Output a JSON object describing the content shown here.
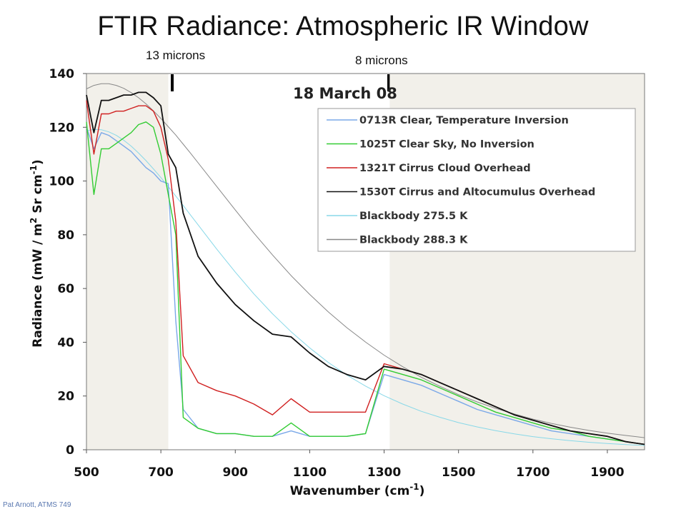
{
  "slide": {
    "title": "FTIR Radiance: Atmospheric IR Window",
    "footer": "Pat Arnott, ATMS 749",
    "markers": [
      {
        "label": "13 microns",
        "x": 720
      },
      {
        "label": "8 microns",
        "x": 1315
      }
    ]
  },
  "chart_data": {
    "type": "line",
    "title": "18 March 08",
    "xlabel": "Wavenumber (cm",
    "xlabel_sup": "-1",
    "xlabel_end": ")",
    "ylabel": "Radiance (mW / m",
    "ylabel_sup1": "2",
    "ylabel_mid": " Sr cm",
    "ylabel_sup2": "-1",
    "ylabel_end": ")",
    "xlim": [
      500,
      2000
    ],
    "ylim": [
      0,
      140
    ],
    "xticks": [
      "500",
      "700",
      "900",
      "1100",
      "1300",
      "1500",
      "1700",
      "1900"
    ],
    "yticks": [
      "0",
      "20",
      "40",
      "60",
      "80",
      "100",
      "120",
      "140"
    ],
    "xtick_values": [
      500,
      700,
      900,
      1100,
      1300,
      1500,
      1700,
      1900
    ],
    "ytick_values": [
      0,
      20,
      40,
      60,
      80,
      100,
      120,
      140
    ],
    "shaded_regions": [
      [
        500,
        720
      ],
      [
        1315,
        2000
      ]
    ],
    "grid": false,
    "legend_position": "top-right",
    "series": [
      {
        "name": "0713R Clear, Temperature Inversion",
        "color": "#7aa8e8",
        "x": [
          500,
          520,
          540,
          560,
          580,
          600,
          620,
          640,
          660,
          680,
          700,
          720,
          740,
          760,
          800,
          850,
          900,
          950,
          1000,
          1050,
          1100,
          1150,
          1200,
          1250,
          1300,
          1350,
          1400,
          1450,
          1500,
          1550,
          1600,
          1650,
          1700,
          1750,
          1800,
          1850,
          1900,
          1950,
          2000
        ],
        "y": [
          120,
          112,
          118,
          117,
          115,
          113,
          111,
          108,
          105,
          103,
          100,
          99,
          48,
          15,
          8,
          6,
          6,
          5,
          5,
          7,
          5,
          5,
          5,
          6,
          28,
          26,
          24,
          21,
          18,
          15,
          13,
          11,
          9,
          7,
          6,
          5,
          4,
          3,
          2
        ]
      },
      {
        "name": "1025T Clear Sky, No Inversion",
        "color": "#33cc33",
        "x": [
          500,
          520,
          540,
          560,
          580,
          600,
          620,
          640,
          660,
          680,
          700,
          720,
          740,
          760,
          800,
          850,
          900,
          950,
          1000,
          1050,
          1100,
          1150,
          1200,
          1250,
          1300,
          1350,
          1400,
          1450,
          1500,
          1550,
          1600,
          1650,
          1700,
          1750,
          1800,
          1850,
          1900,
          1950,
          2000
        ],
        "y": [
          122,
          95,
          112,
          112,
          114,
          116,
          118,
          121,
          122,
          120,
          110,
          95,
          80,
          12,
          8,
          6,
          6,
          5,
          5,
          10,
          5,
          5,
          5,
          6,
          30,
          28,
          26,
          23,
          20,
          17,
          14,
          12,
          10,
          8,
          7,
          5,
          4,
          3,
          2
        ]
      },
      {
        "name": "1321T Cirrus Cloud Overhead",
        "color": "#d02020",
        "x": [
          500,
          520,
          540,
          560,
          580,
          600,
          620,
          640,
          660,
          680,
          700,
          720,
          740,
          760,
          800,
          850,
          900,
          950,
          1000,
          1050,
          1100,
          1150,
          1200,
          1250,
          1300,
          1350,
          1400,
          1450,
          1500,
          1550,
          1600,
          1650,
          1700,
          1750,
          1800,
          1850,
          1900,
          1950,
          2000
        ],
        "y": [
          130,
          110,
          125,
          125,
          126,
          126,
          127,
          128,
          128,
          126,
          120,
          108,
          85,
          35,
          25,
          22,
          20,
          17,
          13,
          19,
          14,
          14,
          14,
          14,
          32,
          30,
          28,
          25,
          22,
          19,
          16,
          13,
          11,
          9,
          7,
          6,
          5,
          3,
          2
        ]
      },
      {
        "name": "1530T Cirrus and Altocumulus Overhead",
        "color": "#111111",
        "x": [
          500,
          520,
          540,
          560,
          580,
          600,
          620,
          640,
          660,
          680,
          700,
          720,
          740,
          760,
          800,
          850,
          900,
          950,
          1000,
          1050,
          1100,
          1150,
          1200,
          1250,
          1300,
          1350,
          1400,
          1450,
          1500,
          1550,
          1600,
          1650,
          1700,
          1750,
          1800,
          1850,
          1900,
          1950,
          2000
        ],
        "y": [
          132,
          118,
          130,
          130,
          131,
          132,
          132,
          133,
          133,
          131,
          128,
          110,
          105,
          88,
          72,
          62,
          54,
          48,
          43,
          42,
          36,
          31,
          28,
          26,
          31,
          30,
          28,
          25,
          22,
          19,
          16,
          13,
          11,
          9,
          7,
          6,
          5,
          3,
          2
        ]
      },
      {
        "name": "Blackbody 275.5 K",
        "color": "#88d8e8",
        "x": [
          500,
          520,
          540,
          560,
          580,
          600,
          620,
          640,
          660,
          680,
          700,
          720,
          740,
          760,
          780,
          800,
          850,
          900,
          950,
          1000,
          1050,
          1100,
          1150,
          1200,
          1250,
          1300,
          1350,
          1400,
          1450,
          1500,
          1550,
          1600,
          1650,
          1700,
          1750,
          1800,
          1850,
          1900,
          1950,
          2000
        ],
        "y": [
          118.7,
          119.2,
          119.1,
          118.3,
          117.0,
          115.2,
          113.0,
          110.4,
          107.6,
          104.5,
          101.3,
          97.9,
          94.4,
          90.9,
          87.3,
          83.7,
          74.7,
          66.1,
          58.0,
          50.6,
          43.9,
          37.9,
          32.5,
          27.8,
          23.7,
          20.1,
          17.0,
          14.3,
          12.1,
          10.1,
          8.5,
          7.1,
          5.9,
          4.9,
          4.1,
          3.4,
          2.8,
          2.3,
          1.9,
          1.6
        ]
      },
      {
        "name": "Blackbody 288.3 K",
        "color": "#888888",
        "x": [
          500,
          520,
          540,
          560,
          580,
          600,
          620,
          640,
          660,
          680,
          700,
          720,
          740,
          760,
          780,
          800,
          850,
          900,
          950,
          1000,
          1050,
          1100,
          1150,
          1200,
          1250,
          1300,
          1350,
          1400,
          1450,
          1500,
          1550,
          1600,
          1650,
          1700,
          1750,
          1800,
          1850,
          1900,
          1950,
          2000
        ],
        "y": [
          134.3,
          135.6,
          136.2,
          136.2,
          135.6,
          134.5,
          132.9,
          131.0,
          128.7,
          126.1,
          123.3,
          120.2,
          117.1,
          113.7,
          110.3,
          106.8,
          98.0,
          89.2,
          80.6,
          72.5,
          64.8,
          57.8,
          51.3,
          45.4,
          40.1,
          35.2,
          30.9,
          27.0,
          23.6,
          20.5,
          17.8,
          15.4,
          13.3,
          11.4,
          9.8,
          8.4,
          7.2,
          6.2,
          5.3,
          4.5
        ]
      }
    ]
  }
}
